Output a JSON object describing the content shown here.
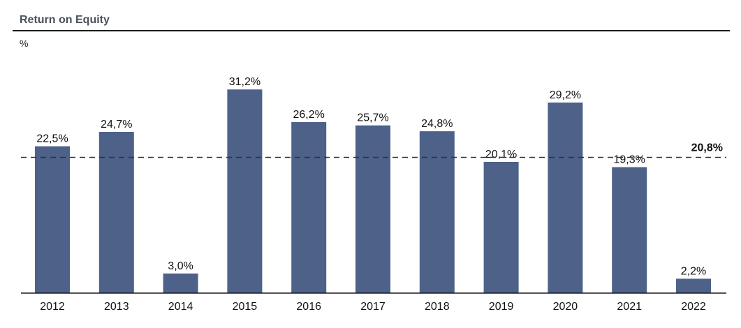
{
  "header": {
    "title": "Return on Equity",
    "unit": "%"
  },
  "colors": {
    "bar": "#4d6189",
    "axis": "#1a1a1a",
    "reference_line": "#333333"
  },
  "chart_data": {
    "type": "bar",
    "title": "Return on Equity",
    "ylabel": "%",
    "categories": [
      "2012",
      "2013",
      "2014",
      "2015",
      "2016",
      "2017",
      "2018",
      "2019",
      "2020",
      "2021",
      "2022"
    ],
    "values": [
      22.5,
      24.7,
      3.0,
      31.2,
      26.2,
      25.7,
      24.8,
      20.1,
      29.2,
      19.3,
      2.2
    ],
    "data_labels": [
      "22,5%",
      "24,7%",
      "3,0%",
      "31,2%",
      "26,2%",
      "25,7%",
      "24,8%",
      "20,1%",
      "29,2%",
      "19,3%",
      "2,2%"
    ],
    "ylim": [
      0,
      37
    ],
    "grid": false,
    "reference_line": {
      "value": 20.8,
      "label": "20,8%",
      "style": "dashed"
    }
  }
}
